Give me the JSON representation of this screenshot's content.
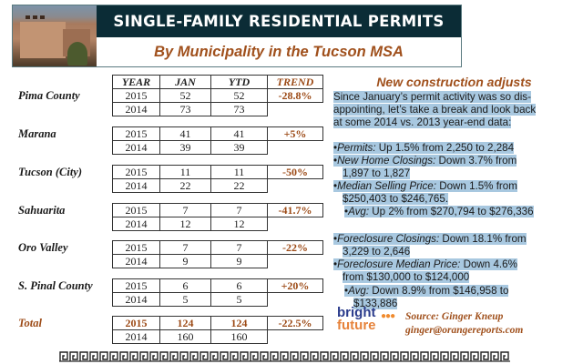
{
  "header": {
    "title": "SINGLE-FAMILY RESIDENTIAL PERMITS",
    "subtitle": "By Municipality in the Tucson MSA"
  },
  "table": {
    "columns": [
      "YEAR",
      "JAN",
      "YTD",
      "TREND"
    ],
    "municipalities": [
      {
        "name": "Pima County",
        "rows": [
          [
            "2015",
            "52",
            "52"
          ],
          [
            "2014",
            "73",
            "73"
          ]
        ],
        "trend": "-28.8%"
      },
      {
        "name": "Marana",
        "rows": [
          [
            "2015",
            "41",
            "41"
          ],
          [
            "2014",
            "39",
            "39"
          ]
        ],
        "trend": "+5%"
      },
      {
        "name": "Tucson (City)",
        "rows": [
          [
            "2015",
            "11",
            "11"
          ],
          [
            "2014",
            "22",
            "22"
          ]
        ],
        "trend": "-50%"
      },
      {
        "name": "Sahuarita",
        "rows": [
          [
            "2015",
            "7",
            "7"
          ],
          [
            "2014",
            "12",
            "12"
          ]
        ],
        "trend": "-41.7%"
      },
      {
        "name": "Oro Valley",
        "rows": [
          [
            "2015",
            "7",
            "7"
          ],
          [
            "2014",
            "9",
            "9"
          ]
        ],
        "trend": "-22%"
      },
      {
        "name": "S. Pinal County",
        "rows": [
          [
            "2015",
            "6",
            "6"
          ],
          [
            "2014",
            "5",
            "5"
          ]
        ],
        "trend": "+20%"
      },
      {
        "name": "Total",
        "rows": [
          [
            "2015",
            "124",
            "124"
          ],
          [
            "2014",
            "160",
            "160"
          ]
        ],
        "trend": "-22.5%"
      }
    ]
  },
  "sidebar": {
    "title": "New construction adjusts",
    "intro": [
      "Since January’s permit activity was so dis-",
      "appointing, let’s take a break and look back",
      "at some 2014 vs. 2013 year-end data:"
    ],
    "items": [
      {
        "label": "Permits:",
        "text": " Up 1.5% from 2,250 to 2,284",
        "cont": ""
      },
      {
        "label": "New Home Closings:",
        "text": " Down 3.7% from",
        "cont": "1,897 to 1,827"
      },
      {
        "label": "Median Selling Price:",
        "text": " Down 1.5% from",
        "cont": "$250,403 to $246,765."
      },
      {
        "label": "Avg:",
        "text": " Up 2% from $270,794 to $276,336",
        "cont": ""
      },
      {
        "label": "Foreclosure Closings:",
        "text": " Down 18.1% from",
        "cont": "3,229 to 2,646"
      },
      {
        "label": "Foreclosure Median Price:",
        "text": " Down 4.6%",
        "cont": "from $130,000 to $124,000"
      },
      {
        "label": "Avg:",
        "text": " Down 8.9% from $146,958 to",
        "cont": "$133,886"
      }
    ],
    "bullet": "•"
  },
  "logo": {
    "line1": "bright",
    "line2": "future",
    "dots": "●●●"
  },
  "source": {
    "label": "Source: Ginger Kneup",
    "email": "ginger@orangereports.com"
  },
  "colors": {
    "banner": "#0b2c36",
    "accent": "#a0501c",
    "highlight": "#a8c8e0"
  }
}
